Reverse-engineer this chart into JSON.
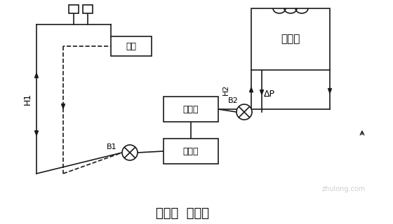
{
  "title": "水系统  （一）",
  "title_fontsize": 13,
  "bg_color": "#ffffff",
  "line_color": "#1a1a1a",
  "labels": {
    "cooling_tower": "冷却塔",
    "terminal": "末端",
    "condenser": "冷凝器",
    "evaporator": "蒸发器",
    "B1": "B1",
    "B2": "B2",
    "H1": "H1",
    "H2": "H2",
    "dP": "ΔP"
  },
  "font_size_box": 9,
  "font_size_label": 8,
  "watermark": "zhulong.com"
}
